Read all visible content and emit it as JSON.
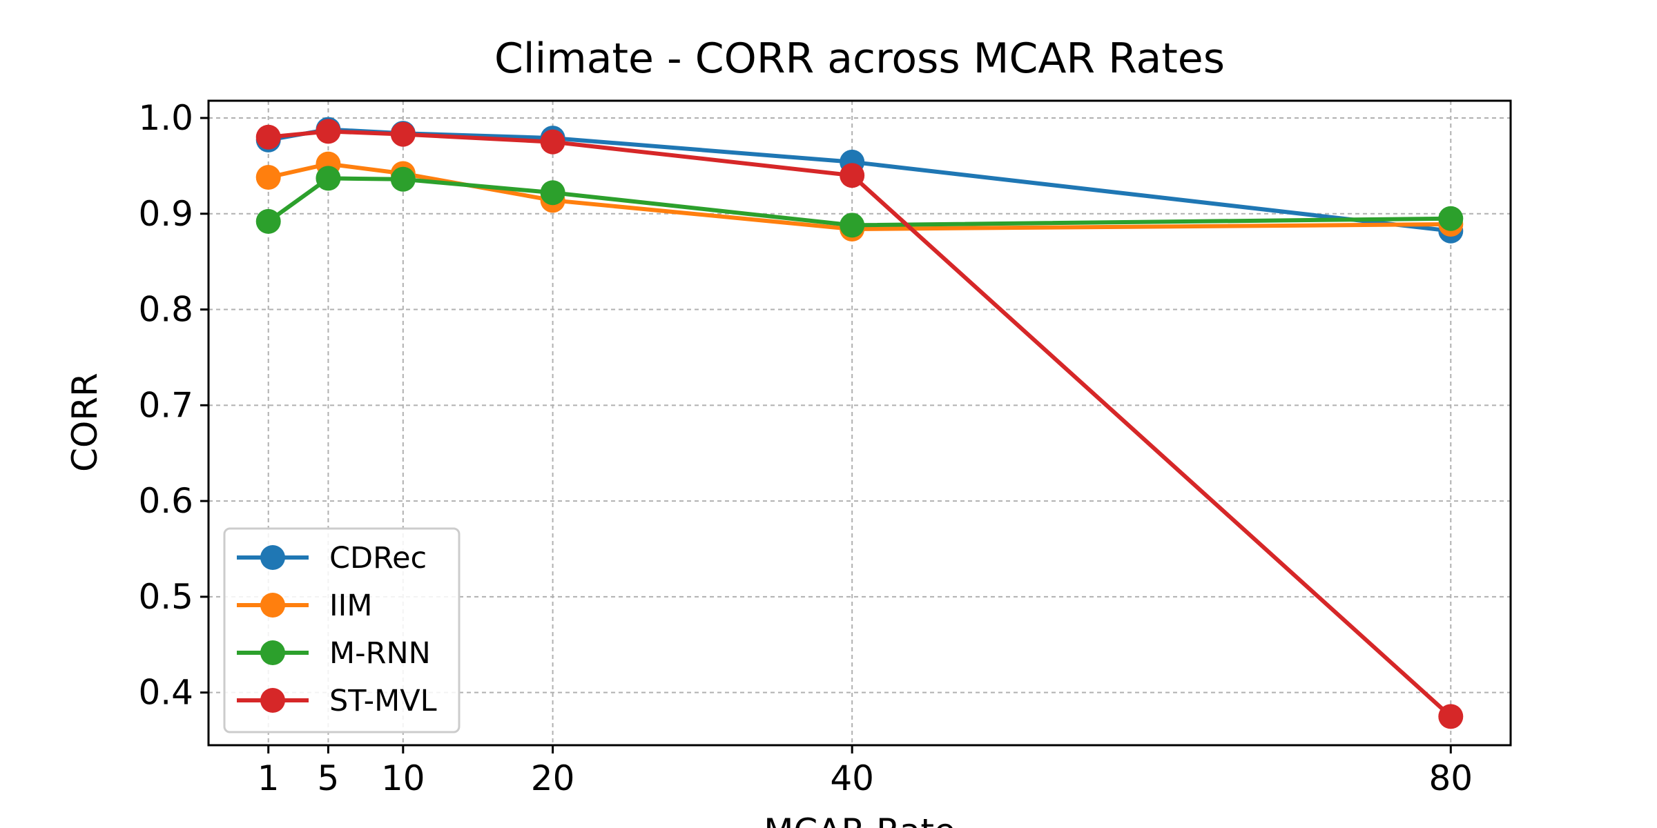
{
  "chart_data": {
    "type": "line",
    "title": "Climate - CORR across MCAR Rates",
    "xlabel": "MCAR Rate",
    "ylabel": "CORR",
    "x": [
      1,
      5,
      10,
      20,
      40,
      80
    ],
    "x_tick_labels": [
      "1",
      "5",
      "10",
      "20",
      "40",
      "80"
    ],
    "xlim": [
      -3,
      84
    ],
    "ylim": [
      0.345,
      1.018
    ],
    "y_ticks": [
      0.4,
      0.5,
      0.6,
      0.7,
      0.8,
      0.9,
      1.0
    ],
    "y_tick_labels": [
      "0.4",
      "0.5",
      "0.6",
      "0.7",
      "0.8",
      "0.9",
      "1.0"
    ],
    "grid": true,
    "legend_position": "lower-left",
    "series": [
      {
        "name": "CDRec",
        "color": "#1f77b4",
        "values": [
          0.977,
          0.988,
          0.984,
          0.979,
          0.954,
          0.882
        ]
      },
      {
        "name": "IIM",
        "color": "#ff7f0e",
        "values": [
          0.938,
          0.952,
          0.942,
          0.914,
          0.884,
          0.889
        ]
      },
      {
        "name": "M-RNN",
        "color": "#2ca02c",
        "values": [
          0.892,
          0.937,
          0.936,
          0.922,
          0.888,
          0.895
        ]
      },
      {
        "name": "ST-MVL",
        "color": "#d62728",
        "values": [
          0.98,
          0.986,
          0.983,
          0.975,
          0.94,
          0.375
        ]
      }
    ]
  }
}
